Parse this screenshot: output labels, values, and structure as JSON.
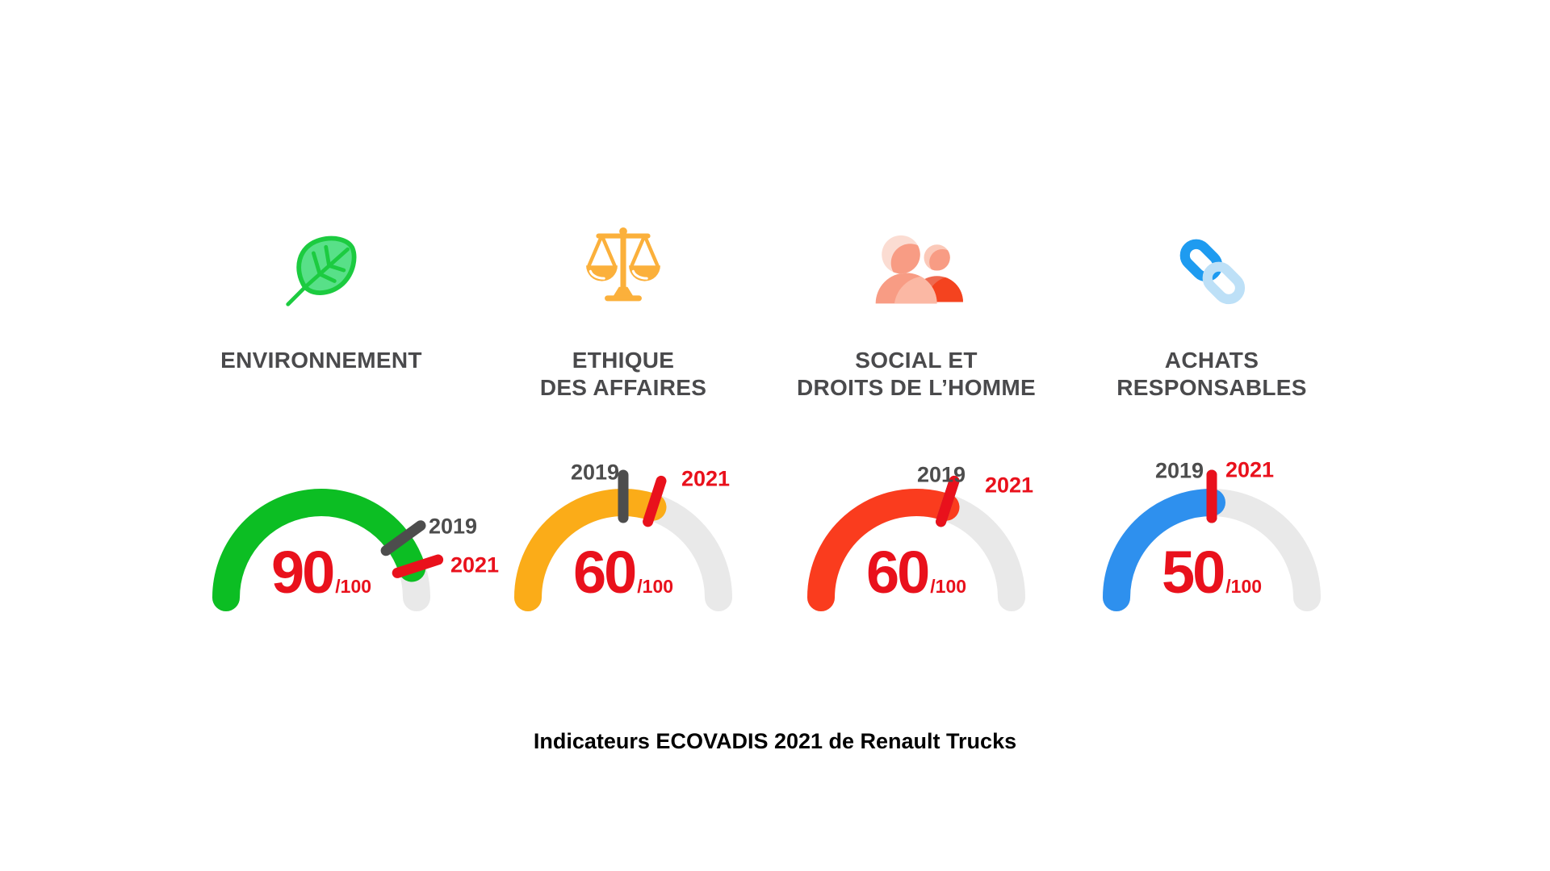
{
  "page": {
    "background": "#ffffff"
  },
  "colors": {
    "page_bg": "#ffffff",
    "track_gray": "#e9e9e9",
    "tick_2019": "#4d4d4d",
    "tick_2021": "#e9111c",
    "score_red": "#e9111c",
    "label_gray": "#4a4a4c",
    "caption_black": "#000000",
    "leaf_stroke": "#1ccb40",
    "leaf_fill": "#58e088",
    "scales_amber": "#fbb03b",
    "people_light": "#fbdcd2",
    "people_salmon": "#f89c84",
    "people_salmon_light": "#fbb8a4",
    "people_head_back": "#fbc9b9",
    "people_red": "#f4431f",
    "people_red_muted": "#ee6a50",
    "link_blue": "#1e9bf0",
    "link_light": "#bde0f7"
  },
  "chart_data": {
    "type": "gauge",
    "max": 100,
    "title": "Indicateurs ECOVADIS 2021 de Renault Trucks",
    "legend": {
      "year_previous": "2019",
      "year_current": "2021"
    },
    "gauges": [
      {
        "id": "environnement",
        "label": "ENVIRONNEMENT",
        "label_line1": "ENVIRONNEMENT",
        "label_line2": "",
        "icon": "leaf-icon",
        "color": "#0cbe23",
        "value_2021": 90,
        "value_2019": 80,
        "score": "90",
        "denominator": "/100",
        "year_2019": "2019",
        "year_2021": "2021"
      },
      {
        "id": "ethique-des-affaires",
        "label": "ETHIQUE DES AFFAIRES",
        "label_line1": "ETHIQUE",
        "label_line2": "DES AFFAIRES",
        "icon": "scales-icon",
        "color": "#fbac18",
        "value_2021": 60,
        "value_2019": 50,
        "score": "60",
        "denominator": "/100",
        "year_2019": "2019",
        "year_2021": "2021"
      },
      {
        "id": "social-et-droits-de-l-homme",
        "label": "SOCIAL ET DROITS DE L’HOMME",
        "label_line1": "SOCIAL ET",
        "label_line2": "DROITS DE L’HOMME",
        "icon": "people-icon",
        "color": "#fa3c1e",
        "value_2021": 60,
        "value_2019": 60,
        "score": "60",
        "denominator": "/100",
        "year_2019": "2019",
        "year_2021": "2021"
      },
      {
        "id": "achats-responsables",
        "label": "ACHATS RESPONSABLES",
        "label_line1": "ACHATS",
        "label_line2": "RESPONSABLES",
        "icon": "link-icon",
        "color": "#2e90ee",
        "value_2021": 50,
        "value_2019": 50,
        "score": "50",
        "denominator": "/100",
        "year_2019": "2019",
        "year_2021": "2021"
      }
    ]
  }
}
